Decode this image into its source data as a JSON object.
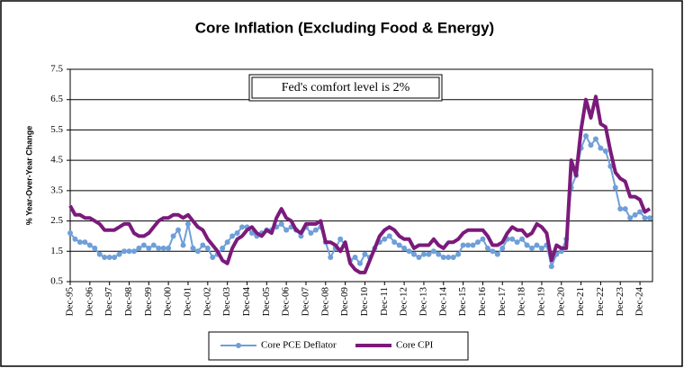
{
  "chart_data": {
    "type": "line",
    "title": "Core Inflation (Excluding Food & Energy)",
    "y_label": "% Year-Over-Year Change",
    "annotation": "Fed's comfort level is 2%",
    "categories": [
      "Dec-95",
      null,
      null,
      null,
      "Dec-96",
      null,
      null,
      null,
      "Dec-97",
      null,
      null,
      null,
      "Dec-98",
      null,
      null,
      null,
      "Dec-99",
      null,
      null,
      null,
      "Dec-00",
      null,
      null,
      null,
      "Dec-01",
      null,
      null,
      null,
      "Dec-02",
      null,
      null,
      null,
      "Dec-03",
      null,
      null,
      null,
      "Dec-04",
      null,
      null,
      null,
      "Dec-05",
      null,
      null,
      null,
      "Dec-06",
      null,
      null,
      null,
      "Dec-07",
      null,
      null,
      null,
      "Dec-08",
      null,
      null,
      null,
      "Dec-09",
      null,
      null,
      null,
      "Dec-10",
      null,
      null,
      null,
      "Dec-11",
      null,
      null,
      null,
      "Dec-12",
      null,
      null,
      null,
      "Dec-13",
      null,
      null,
      null,
      "Dec-14",
      null,
      null,
      null,
      "Dec-15",
      null,
      null,
      null,
      "Dec-16",
      null,
      null,
      null,
      "Dec-17",
      null,
      null,
      null,
      "Dec-18",
      null,
      null,
      null,
      "Dec-19",
      null,
      null,
      null,
      "Dec-20",
      null,
      null,
      null,
      "Dec-21",
      null,
      null,
      null,
      "Dec-22",
      null,
      null,
      null,
      "Dec-23",
      null,
      null,
      null,
      "Dec-24",
      null,
      null
    ],
    "series": [
      {
        "name": "Core PCE Deflator",
        "color": "#6f9fd8",
        "markers": true,
        "width": 2,
        "values": [
          2.1,
          1.9,
          1.8,
          1.8,
          1.7,
          1.6,
          1.4,
          1.3,
          1.3,
          1.3,
          1.4,
          1.5,
          1.5,
          1.5,
          1.6,
          1.7,
          1.6,
          1.7,
          1.6,
          1.6,
          1.6,
          2.0,
          2.2,
          1.7,
          2.4,
          1.6,
          1.5,
          1.7,
          1.6,
          1.3,
          1.4,
          1.6,
          1.8,
          2.0,
          2.1,
          2.3,
          2.3,
          2.1,
          2.0,
          2.1,
          2.2,
          2.2,
          2.3,
          2.4,
          2.2,
          2.3,
          2.2,
          2.0,
          2.3,
          2.1,
          2.2,
          2.3,
          1.8,
          1.3,
          1.6,
          1.9,
          1.7,
          1.2,
          1.3,
          1.1,
          1.4,
          1.3,
          1.6,
          1.8,
          1.9,
          2.0,
          1.8,
          1.7,
          1.6,
          1.5,
          1.4,
          1.3,
          1.4,
          1.4,
          1.5,
          1.4,
          1.3,
          1.3,
          1.3,
          1.4,
          1.7,
          1.7,
          1.7,
          1.8,
          1.9,
          1.6,
          1.5,
          1.4,
          1.6,
          1.9,
          1.9,
          1.8,
          1.9,
          1.7,
          1.6,
          1.7,
          1.6,
          1.7,
          1.0,
          1.4,
          1.5,
          1.9,
          3.6,
          4.0,
          4.9,
          5.3,
          5.0,
          5.2,
          4.9,
          4.8,
          4.3,
          3.6,
          2.9,
          2.9,
          2.6,
          2.7,
          2.8,
          2.6,
          2.6
        ]
      },
      {
        "name": "Core CPI",
        "color": "#7b1a7b",
        "markers": false,
        "width": 4,
        "values": [
          3.0,
          2.7,
          2.7,
          2.6,
          2.6,
          2.5,
          2.4,
          2.2,
          2.2,
          2.2,
          2.3,
          2.4,
          2.4,
          2.1,
          2.0,
          2.0,
          2.1,
          2.3,
          2.5,
          2.6,
          2.6,
          2.7,
          2.7,
          2.6,
          2.7,
          2.5,
          2.3,
          2.2,
          1.9,
          1.7,
          1.5,
          1.2,
          1.1,
          1.6,
          1.9,
          2.0,
          2.2,
          2.3,
          2.1,
          2.0,
          2.2,
          2.1,
          2.6,
          2.9,
          2.6,
          2.5,
          2.2,
          2.1,
          2.4,
          2.4,
          2.4,
          2.5,
          1.8,
          1.8,
          1.7,
          1.5,
          1.8,
          1.1,
          0.9,
          0.8,
          0.8,
          1.2,
          1.6,
          2.0,
          2.2,
          2.3,
          2.2,
          2.0,
          1.9,
          1.9,
          1.6,
          1.7,
          1.7,
          1.7,
          1.9,
          1.7,
          1.6,
          1.8,
          1.8,
          1.9,
          2.1,
          2.2,
          2.2,
          2.2,
          2.2,
          2.0,
          1.7,
          1.7,
          1.8,
          2.1,
          2.3,
          2.2,
          2.2,
          2.0,
          2.1,
          2.4,
          2.3,
          2.1,
          1.2,
          1.7,
          1.6,
          1.6,
          4.5,
          4.0,
          5.5,
          6.5,
          5.9,
          6.6,
          5.7,
          5.6,
          4.8,
          4.1,
          3.9,
          3.8,
          3.3,
          3.3,
          3.2,
          2.8,
          2.9
        ]
      }
    ],
    "ylim": [
      0.5,
      7.5
    ],
    "yticks": [
      0.5,
      1.5,
      2.5,
      3.5,
      4.5,
      5.5,
      6.5,
      7.5
    ],
    "grid": true
  }
}
